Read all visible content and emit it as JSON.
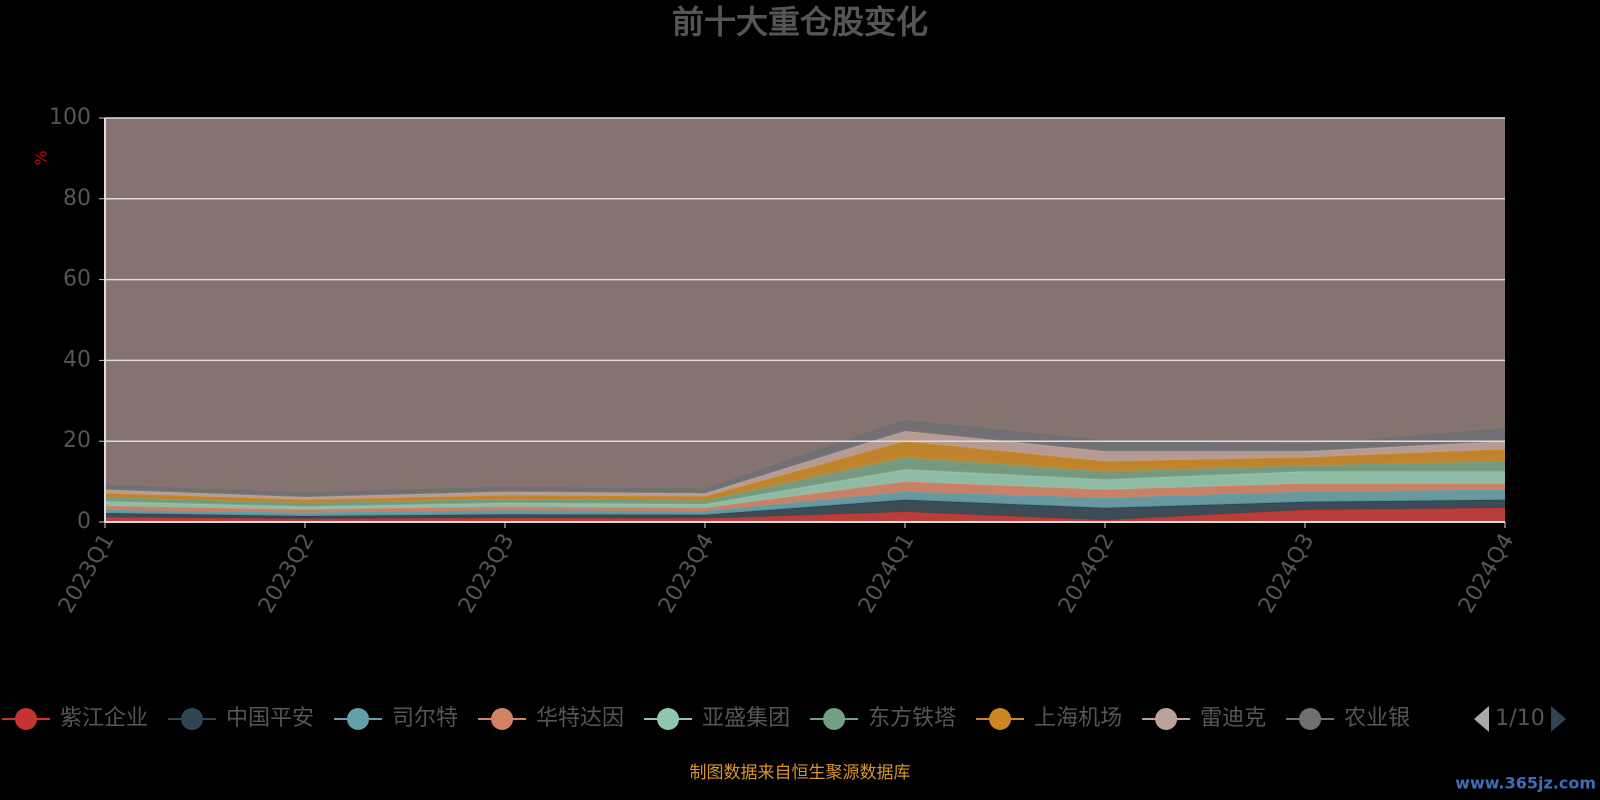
{
  "chart_data": {
    "type": "stacked_area",
    "title": "前十大重仓股变化",
    "y_label": "%",
    "categories": [
      "2023Q1",
      "2023Q2",
      "2023Q3",
      "2023Q4",
      "2024Q1",
      "2024Q2",
      "2024Q3",
      "2024Q4"
    ],
    "series": [
      {
        "name": "紫江企业",
        "color": "#c23531",
        "values": [
          1.2,
          0.8,
          1.0,
          0.9,
          2.5,
          0.5,
          3.0,
          3.5
        ]
      },
      {
        "name": "中国平安",
        "color": "#2f4554",
        "values": [
          1.0,
          0.7,
          0.9,
          0.9,
          3.0,
          3.0,
          2.0,
          2.0
        ]
      },
      {
        "name": "司尔特",
        "color": "#61a0a8",
        "values": [
          0.8,
          0.8,
          1.0,
          0.9,
          2.0,
          2.5,
          2.5,
          2.5
        ]
      },
      {
        "name": "华特达因",
        "color": "#d48265",
        "values": [
          1.0,
          0.8,
          0.9,
          0.8,
          2.5,
          2.0,
          2.0,
          1.5
        ]
      },
      {
        "name": "亚盛集团",
        "color": "#91c7ae",
        "values": [
          1.1,
          0.7,
          0.9,
          0.9,
          3.0,
          2.5,
          3.0,
          3.0
        ]
      },
      {
        "name": "东方铁塔",
        "color": "#749f83",
        "values": [
          1.0,
          0.9,
          1.0,
          0.9,
          3.0,
          2.0,
          1.5,
          2.5
        ]
      },
      {
        "name": "上海机场",
        "color": "#ca8622",
        "values": [
          1.0,
          0.8,
          0.9,
          1.0,
          4.0,
          2.5,
          2.0,
          3.0
        ]
      },
      {
        "name": "雷迪克",
        "color": "#bda29a",
        "values": [
          0.9,
          0.7,
          0.9,
          0.8,
          2.5,
          2.5,
          1.5,
          2.0
        ]
      },
      {
        "name": "农业银",
        "color": "#6e7074",
        "values": [
          1.0,
          0.8,
          1.0,
          0.9,
          2.5,
          2.5,
          1.5,
          3.0
        ]
      }
    ],
    "ylim": [
      0,
      100
    ],
    "yticks": [
      0,
      20,
      40,
      60,
      80,
      100
    ],
    "grid": true,
    "legend_page": "1/10",
    "source": "制图数据来自恒生聚源数据库",
    "watermark": "www.365jz.com"
  }
}
